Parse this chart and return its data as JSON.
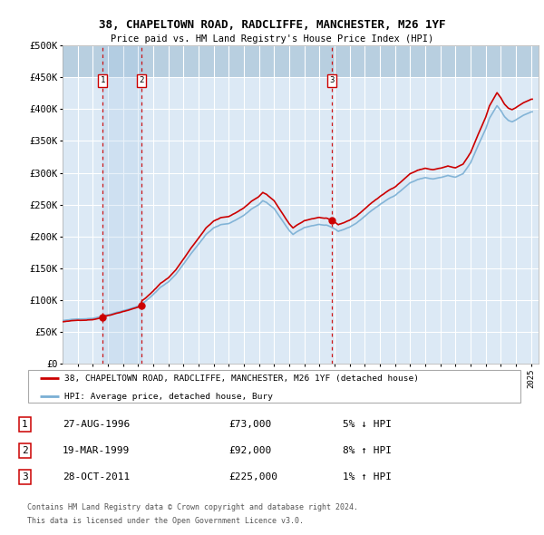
{
  "title": "38, CHAPELTOWN ROAD, RADCLIFFE, MANCHESTER, M26 1YF",
  "subtitle": "Price paid vs. HM Land Registry's House Price Index (HPI)",
  "ylim": [
    0,
    500000
  ],
  "yticks": [
    0,
    50000,
    100000,
    150000,
    200000,
    250000,
    300000,
    350000,
    400000,
    450000,
    500000
  ],
  "xlim_start": 1994.0,
  "xlim_end": 2025.5,
  "background_color": "#ffffff",
  "plot_bg_color": "#dce9f5",
  "hatch_color": "#b8cfe0",
  "grid_color": "#ffffff",
  "legend_line1": "38, CHAPELTOWN ROAD, RADCLIFFE, MANCHESTER, M26 1YF (detached house)",
  "legend_line2": "HPI: Average price, detached house, Bury",
  "footer1": "Contains HM Land Registry data © Crown copyright and database right 2024.",
  "footer2": "This data is licensed under the Open Government Licence v3.0.",
  "transactions": [
    {
      "num": 1,
      "date": "27-AUG-1996",
      "price": 73000,
      "pct": "5%",
      "dir": "↓",
      "x": 1996.65
    },
    {
      "num": 2,
      "date": "19-MAR-1999",
      "price": 92000,
      "pct": "8%",
      "dir": "↑",
      "x": 1999.21
    },
    {
      "num": 3,
      "date": "28-OCT-2011",
      "price": 225000,
      "pct": "1%",
      "dir": "↑",
      "x": 2011.82
    }
  ],
  "property_color": "#cc0000",
  "hpi_color": "#7aafd4",
  "marker_color": "#cc0000",
  "vline_color": "#cc0000",
  "fill_color": "#c8dff0"
}
